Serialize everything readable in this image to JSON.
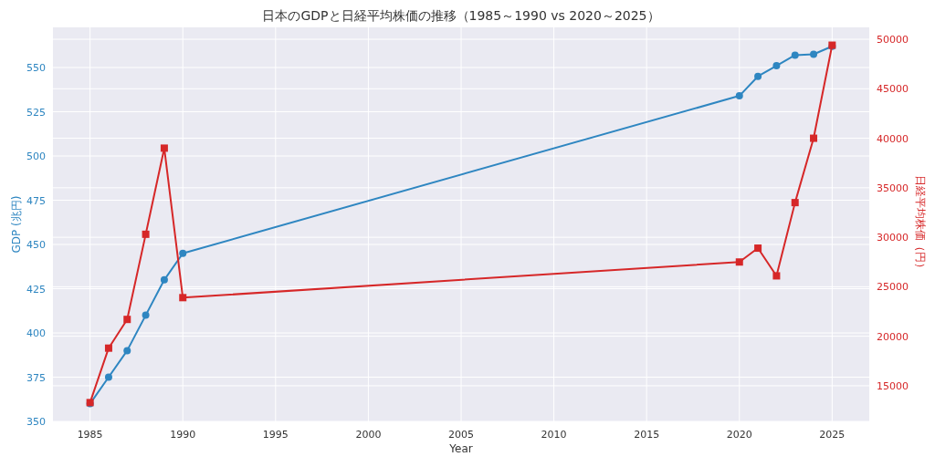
{
  "chart_data": {
    "type": "line",
    "title": "日本のGDPと日経平均株価の推移（1985～1990 vs 2020～2025）",
    "xlabel": "Year",
    "ylabel": "GDP (兆円)",
    "y2label": "日経平均株価（円）",
    "x": [
      1985,
      1986,
      1987,
      1988,
      1989,
      1990,
      2020,
      2021,
      2022,
      2023,
      2024,
      2025
    ],
    "series": [
      {
        "color": "#2e86c1",
        "marker": "circle",
        "values": [
          360,
          375,
          390,
          410,
          430,
          445,
          534,
          545,
          551,
          557,
          557.5,
          562
        ]
      },
      {
        "color": "#d62728",
        "marker": "square",
        "axis": "y2",
        "values": [
          13300,
          18800,
          21700,
          30300,
          39000,
          23900,
          27500,
          28900,
          26100,
          33500,
          40000,
          49400
        ]
      }
    ],
    "xlim": [
      1983,
      2027
    ],
    "xticks": [
      1985,
      1990,
      1995,
      2000,
      2005,
      2010,
      2015,
      2020,
      2025
    ],
    "ylim": [
      350,
      572.7
    ],
    "yticks": [
      350,
      375,
      400,
      425,
      450,
      475,
      500,
      525,
      550
    ],
    "y2lim": [
      11400,
      51200
    ],
    "y2ticks": [
      15000,
      20000,
      25000,
      30000,
      35000,
      40000,
      45000,
      50000
    ],
    "grid": true
  }
}
